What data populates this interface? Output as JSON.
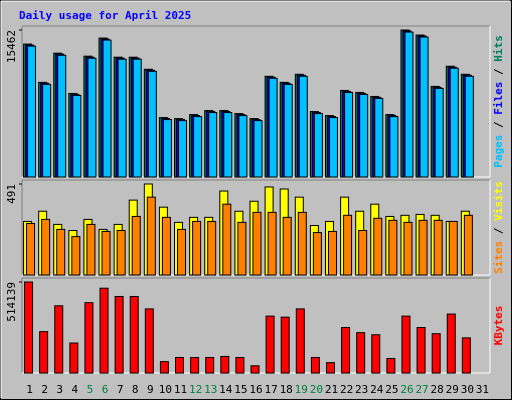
{
  "chart_data": [
    {
      "type": "bar",
      "title": "Daily usage for April 2025",
      "categories": [
        "1",
        "2",
        "3",
        "4",
        "5",
        "6",
        "7",
        "8",
        "9",
        "10",
        "11",
        "12",
        "13",
        "14",
        "15",
        "16",
        "17",
        "18",
        "19",
        "20",
        "21",
        "22",
        "23",
        "24",
        "25",
        "26",
        "27",
        "28",
        "29",
        "30",
        "31"
      ],
      "weekend_categories": [
        "5",
        "6",
        "12",
        "13",
        "19",
        "20",
        "26",
        "27"
      ],
      "weekend_color": "#008040",
      "separator": " / ",
      "ylim": [
        0,
        15462
      ],
      "yticks": [
        15462
      ],
      "series": [
        {
          "name": "Pages",
          "color": "#00c0ff",
          "values": [
            13760,
            9740,
            12800,
            8580,
            12490,
            14400,
            12390,
            12390,
            11120,
            6040,
            5930,
            6350,
            6780,
            6780,
            6460,
            5930,
            10380,
            9740,
            10590,
            6670,
            6250,
            8890,
            8680,
            8260,
            6350,
            15240,
            14720,
            9320,
            11440,
            10590,
            null
          ]
        },
        {
          "name": "Files",
          "color": "#0000ff",
          "values": [
            13880,
            9860,
            12920,
            8690,
            12600,
            14510,
            12500,
            12500,
            11230,
            6150,
            6040,
            6460,
            6890,
            6890,
            6570,
            6040,
            10490,
            9860,
            10700,
            6780,
            6360,
            9000,
            8790,
            8370,
            6460,
            15360,
            14830,
            9430,
            11550,
            10700,
            null
          ]
        },
        {
          "name": "Hits",
          "color": "#00805c",
          "values": [
            13979,
            9955,
            13026,
            8790,
            12708,
            14614,
            12602,
            12602,
            11331,
            6248,
            6142,
            6566,
            6990,
            6990,
            6672,
            6142,
            10590,
            9955,
            10802,
            6884,
            6460,
            9107,
            8896,
            8472,
            6566,
            15462,
            14932,
            9531,
            11649,
            10802,
            null
          ]
        }
      ]
    },
    {
      "type": "bar",
      "ylim": [
        0,
        491
      ],
      "yticks": [
        491
      ],
      "series": [
        {
          "name": "Sites",
          "color": "#ff8000",
          "values": [
            278,
            300,
            246,
            207,
            273,
            235,
            240,
            316,
            420,
            311,
            246,
            289,
            289,
            382,
            284,
            338,
            338,
            311,
            338,
            229,
            235,
            322,
            240,
            306,
            295,
            284,
            295,
            295,
            289,
            322,
            null
          ]
        },
        {
          "name": "Visits",
          "color": "#ffff00",
          "values": [
            289,
            344,
            273,
            240,
            300,
            246,
            273,
            404,
            491,
            366,
            284,
            311,
            311,
            453,
            344,
            398,
            475,
            464,
            420,
            267,
            289,
            420,
            344,
            382,
            316,
            322,
            327,
            322,
            289,
            344,
            null
          ]
        }
      ]
    },
    {
      "type": "bar",
      "ylim": [
        0,
        514139
      ],
      "yticks": [
        514139
      ],
      "series": [
        {
          "name": "KBytes",
          "color": "#ff0000",
          "values": [
            514139,
            233700,
            379763,
            169433,
            397290,
            479085,
            432345,
            432345,
            362235,
            64268,
            87638,
            87638,
            87638,
            93480,
            87638,
            40898,
            321338,
            315495,
            362235,
            87638,
            58425,
            257070,
            227858,
            216173,
            81795,
            321338,
            257070,
            222015,
            333023,
            198645,
            null
          ]
        }
      ]
    }
  ]
}
